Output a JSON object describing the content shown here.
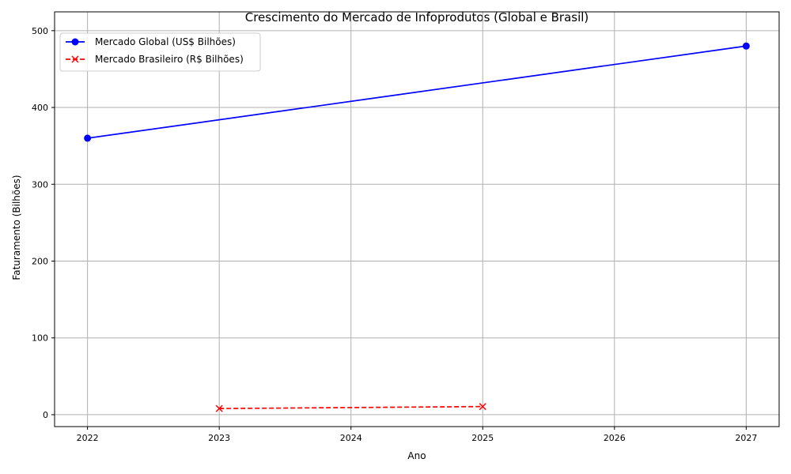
{
  "chart_data": {
    "type": "line",
    "title": "Crescimento do Mercado de Infoprodutos (Global e Brasil)",
    "xlabel": "Ano",
    "ylabel": "Faturamento (Bilhões)",
    "xlim": [
      2021.75,
      2027.25
    ],
    "ylim": [
      -15.5,
      524.5
    ],
    "xticks": [
      2022,
      2023,
      2024,
      2025,
      2026,
      2027
    ],
    "yticks": [
      0,
      100,
      200,
      300,
      400,
      500
    ],
    "grid": true,
    "legend_position": "top-left",
    "series": [
      {
        "name": "Mercado Global (US$ Bilhões)",
        "x": [
          2022,
          2027
        ],
        "y": [
          360,
          480
        ],
        "color": "#0000ff",
        "marker": "o",
        "linestyle": "solid"
      },
      {
        "name": "Mercado Brasileiro (R$ Bilhões)",
        "x": [
          2023,
          2025
        ],
        "y": [
          8,
          10.6
        ],
        "color": "#ff0000",
        "marker": "x",
        "linestyle": "dashed"
      }
    ]
  }
}
